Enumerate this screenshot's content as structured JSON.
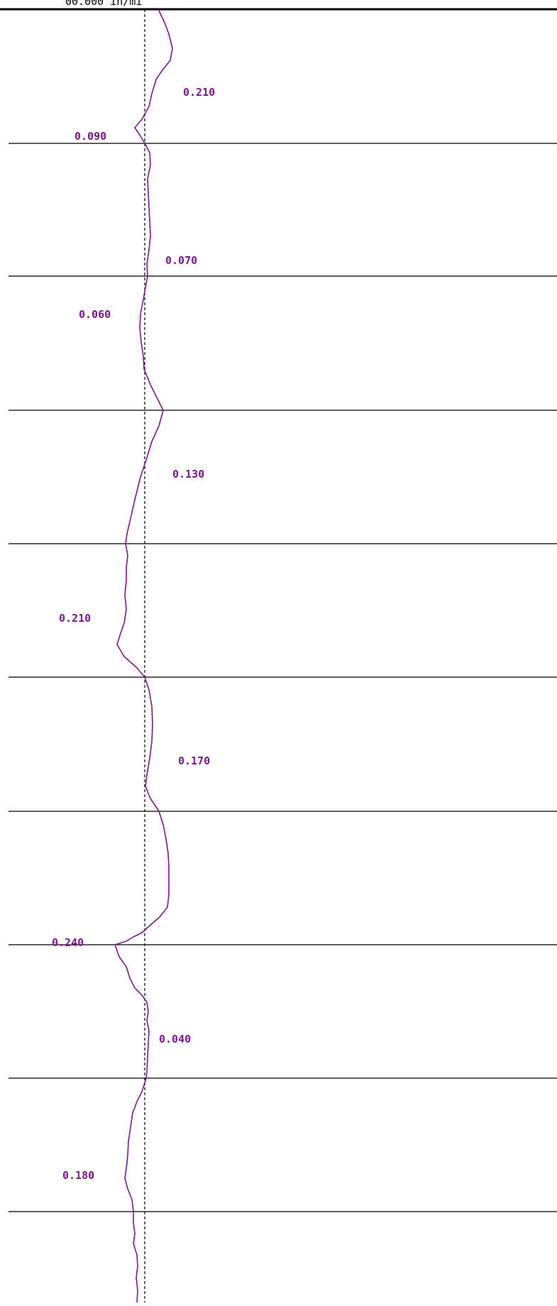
{
  "chart_data": {
    "type": "line",
    "orientation": "vertical-profile",
    "title": "",
    "top_label": "00.000 in/mi",
    "line_color": "#7b1a8c",
    "baseline_color": "#000000",
    "grid": "horizontal",
    "sections": 11,
    "labels": [
      {
        "text": "0.210",
        "side": "right"
      },
      {
        "text": "0.090",
        "side": "left"
      },
      {
        "text": "0.070",
        "side": "right"
      },
      {
        "text": "0.060",
        "side": "left"
      },
      {
        "text": "0.130",
        "side": "right"
      },
      {
        "text": "0.210",
        "side": "left"
      },
      {
        "text": "0.170",
        "side": "right"
      },
      {
        "text": "0.240",
        "side": "left"
      },
      {
        "text": "0.040",
        "side": "right"
      },
      {
        "text": "0.180",
        "side": "left"
      }
    ]
  }
}
